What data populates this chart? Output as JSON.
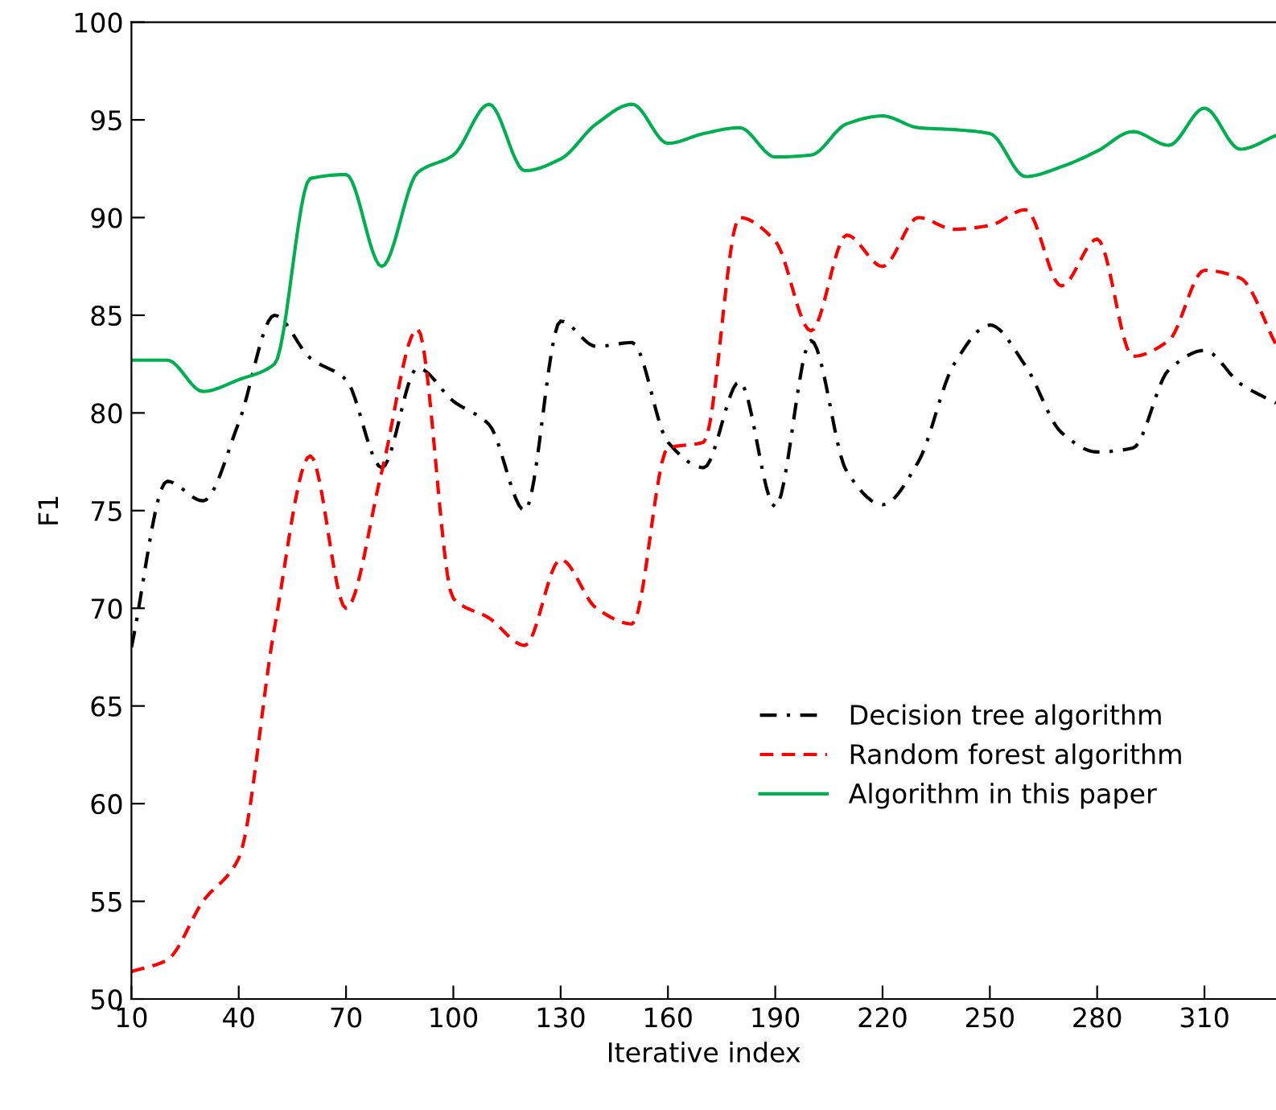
{
  "chart_data": {
    "type": "line",
    "xlabel": "Iterative index",
    "ylabel": "F1",
    "x": [
      10,
      20,
      30,
      40,
      50,
      60,
      70,
      80,
      90,
      100,
      110,
      120,
      130,
      140,
      150,
      160,
      170,
      180,
      190,
      200,
      210,
      220,
      230,
      240,
      250,
      260,
      270,
      280,
      290,
      300,
      310,
      320,
      330
    ],
    "series": [
      {
        "name": "Decision tree algorithm",
        "color": "#000000",
        "line_style": "dashdot",
        "values": [
          68,
          76.5,
          75.5,
          79.5,
          85,
          82.8,
          81.7,
          77.2,
          82.3,
          80.6,
          79.4,
          75,
          84.7,
          83.4,
          83.6,
          78.5,
          77.2,
          81.6,
          75.2,
          83.7,
          77,
          75.3,
          77.5,
          82.5,
          84.5,
          82.4,
          79,
          78,
          78.2,
          82.2,
          83.2,
          81.5,
          80.5
        ]
      },
      {
        "name": "Random forest algorithm",
        "color": "#ff0000",
        "line_style": "dashed",
        "values": [
          51.4,
          52,
          55,
          57.2,
          69,
          77.8,
          70,
          77,
          84.3,
          70.5,
          69.5,
          68.1,
          72.5,
          70,
          69.2,
          78.2,
          78.5,
          90,
          88.8,
          84.2,
          89.1,
          87.5,
          90,
          89.4,
          89.6,
          90.4,
          86.5,
          88.9,
          82.9,
          83.7,
          87.3,
          86.9,
          83.5
        ]
      },
      {
        "name": "Algorithm in this paper",
        "color": "#00b050",
        "line_style": "solid",
        "values": [
          82.7,
          82.7,
          81.1,
          81.7,
          82.5,
          92,
          92.2,
          87.5,
          92.3,
          93.2,
          95.8,
          92.4,
          93,
          94.8,
          95.8,
          93.8,
          94.3,
          94.6,
          93.1,
          93.2,
          94.8,
          95.2,
          94.6,
          94.5,
          94.3,
          92.1,
          92.6,
          93.4,
          94.4,
          93.7,
          95.6,
          93.5,
          94.2
        ]
      }
    ],
    "xlim": [
      10,
      330
    ],
    "xticks": [
      10,
      40,
      70,
      100,
      130,
      160,
      190,
      220,
      250,
      280,
      310
    ],
    "ylim": [
      50,
      100
    ],
    "yticks": [
      50,
      55,
      60,
      65,
      70,
      75,
      80,
      85,
      90,
      95,
      100
    ],
    "grid": false,
    "legend": "lower right",
    "marker": "none"
  }
}
